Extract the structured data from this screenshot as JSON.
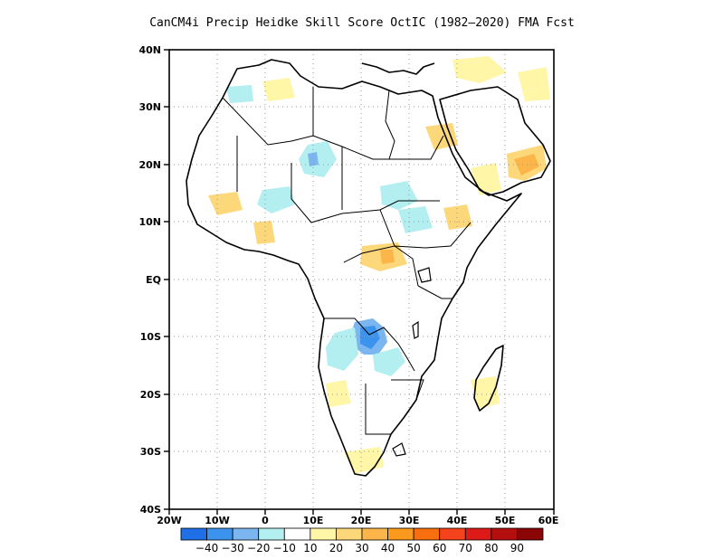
{
  "title": "CanCM4i Precip Heidke Skill Score OctIC (1982–2020) FMA Fcst",
  "lon_ticks": [
    "20W",
    "10W",
    "0",
    "10E",
    "20E",
    "30E",
    "40E",
    "50E",
    "60E"
  ],
  "lat_ticks": [
    "40N",
    "30N",
    "20N",
    "10N",
    "EQ",
    "10S",
    "20S",
    "30S",
    "40S"
  ],
  "map_extent": {
    "lon_min": -20,
    "lon_max": 60,
    "lat_min": -40,
    "lat_max": 40
  },
  "colorbar": {
    "colors": [
      "#1f6fe6",
      "#3c93ee",
      "#7bb6f0",
      "#b3eef0",
      "#ffffff",
      "#fff6a8",
      "#fdd87a",
      "#fcb548",
      "#fb9a1c",
      "#f86f10",
      "#f4421c",
      "#dd1a18",
      "#b40e0e",
      "#8a0606"
    ],
    "labels": [
      "−40",
      "−30",
      "−20",
      "−10",
      "10",
      "20",
      "30",
      "40",
      "50",
      "60",
      "70",
      "80",
      "90"
    ]
  },
  "colors": {
    "land_outline": "#000000",
    "grid": "#9a9a9a",
    "background": "#ffffff"
  }
}
